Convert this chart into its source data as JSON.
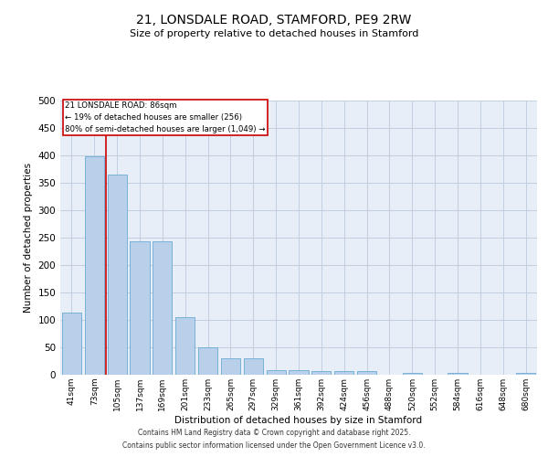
{
  "title": "21, LONSDALE ROAD, STAMFORD, PE9 2RW",
  "subtitle": "Size of property relative to detached houses in Stamford",
  "xlabel": "Distribution of detached houses by size in Stamford",
  "ylabel": "Number of detached properties",
  "categories": [
    "41sqm",
    "73sqm",
    "105sqm",
    "137sqm",
    "169sqm",
    "201sqm",
    "233sqm",
    "265sqm",
    "297sqm",
    "329sqm",
    "361sqm",
    "392sqm",
    "424sqm",
    "456sqm",
    "488sqm",
    "520sqm",
    "552sqm",
    "584sqm",
    "616sqm",
    "648sqm",
    "680sqm"
  ],
  "values": [
    113,
    399,
    365,
    243,
    243,
    105,
    50,
    30,
    30,
    9,
    9,
    6,
    7,
    7,
    0,
    3,
    0,
    3,
    0,
    0,
    3
  ],
  "bar_color": "#b8d0ea",
  "bar_edge_color": "#6aaad4",
  "bar_linewidth": 0.6,
  "bar_width": 0.85,
  "vline_x": 1.5,
  "vline_color": "#cc0000",
  "vline_linewidth": 1.2,
  "annotation_title": "21 LONSDALE ROAD: 86sqm",
  "annotation_line1": "← 19% of detached houses are smaller (256)",
  "annotation_line2": "80% of semi-detached houses are larger (1,049) →",
  "annotation_box_color": "#ffffff",
  "annotation_box_edge": "#cc0000",
  "ylim": [
    0,
    500
  ],
  "yticks": [
    0,
    50,
    100,
    150,
    200,
    250,
    300,
    350,
    400,
    450,
    500
  ],
  "grid_color": "#c0cfe0",
  "bg_color": "#e8eef8",
  "footnote1": "Contains HM Land Registry data © Crown copyright and database right 2025.",
  "footnote2": "Contains public sector information licensed under the Open Government Licence v3.0."
}
